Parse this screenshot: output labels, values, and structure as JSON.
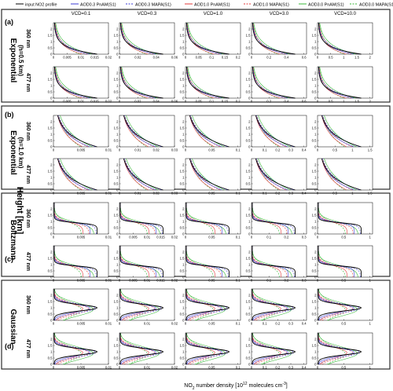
{
  "legend": [
    {
      "label": "input NO2 profile",
      "color": "#000000",
      "dash": ""
    },
    {
      "label": "AOD0.3 PnAM(S1)",
      "color": "#3b3bd6",
      "dash": ""
    },
    {
      "label": "AOD0.3 MAPA(S1)",
      "color": "#3b3bd6",
      "dash": "2,1.5"
    },
    {
      "label": "AOD1.0 PnAM(S1)",
      "color": "#e23a3a",
      "dash": ""
    },
    {
      "label": "AOD1.0 MAPA(S1)",
      "color": "#e23a3a",
      "dash": "2,1.5"
    },
    {
      "label": "AOD3.0 PnAM(S1)",
      "color": "#39b839",
      "dash": ""
    },
    {
      "label": "AOD3.0 MAPA(S1)",
      "color": "#39b839",
      "dash": "2,1.5"
    }
  ],
  "columns": [
    "VCD=0.1",
    "VCD=0.3",
    "VCD=1.0",
    "VCD=3.0",
    "VCD=10.0"
  ],
  "panels": [
    {
      "letter": "(a)",
      "name": "Exponential",
      "sub": "(h=0.5 km)",
      "box_color": "#2b2b2b"
    },
    {
      "letter": "(b)",
      "name": "Exponential",
      "sub": "(h=1.0 km)",
      "box_color": "#2b2b2b"
    },
    {
      "letter": "(c)",
      "name": "Boltzmann",
      "sub": "",
      "box_color": "#2b2b2b"
    },
    {
      "letter": "(d)",
      "name": "Gaussian",
      "sub": "",
      "box_color": "#2b2b2b"
    }
  ],
  "wavelengths": [
    "360 nm",
    "477 nm"
  ],
  "ylabel": "Height [km]",
  "xlabel": "NO2 number density [10^12 molecules cm^-3]",
  "chart_data": {
    "type": "line",
    "rows": 8,
    "cols": 5,
    "ylim": [
      0,
      2.5
    ],
    "yticks": [
      0,
      0.5,
      1,
      1.5,
      2
    ],
    "series_order": [
      "input NO2 profile",
      "AOD0.3 PnAM(S1)",
      "AOD0.3 MAPA(S1)",
      "AOD1.0 PnAM(S1)",
      "AOD1.0 MAPA(S1)",
      "AOD3.0 PnAM(S1)",
      "AOD3.0 MAPA(S1)"
    ],
    "xticks": [
      [
        [
          0,
          0.005,
          0.01,
          0.015,
          0.02
        ],
        [
          0,
          0.02,
          0.04,
          0.06
        ],
        [
          0,
          0.05,
          0.1,
          0.15,
          0.2
        ],
        [
          0,
          0.2,
          0.4,
          0.6
        ],
        [
          0,
          0.5,
          1,
          1.5,
          2
        ]
      ],
      [
        [
          0,
          0.005,
          0.01,
          0.015,
          0.02
        ],
        [
          0,
          0.02,
          0.04,
          0.06
        ],
        [
          0,
          0.05,
          0.1,
          0.15,
          0.2
        ],
        [
          0,
          0.2,
          0.4,
          0.6
        ],
        [
          0,
          0.5,
          1,
          1.5,
          2
        ]
      ],
      [
        [
          0,
          0.005,
          0.01
        ],
        [
          0,
          0.01,
          0.02,
          0.03
        ],
        [
          0,
          0.05,
          0.1
        ],
        [
          0,
          0.1,
          0.2,
          0.3,
          0.4
        ],
        [
          0,
          0.5,
          1,
          1.5
        ]
      ],
      [
        [
          0,
          0.005,
          0.01
        ],
        [
          0,
          0.01,
          0.02,
          0.03
        ],
        [
          0,
          0.05,
          0.1
        ],
        [
          0,
          0.1,
          0.2,
          0.3,
          0.4
        ],
        [
          0,
          0.5,
          1,
          1.5
        ]
      ],
      [
        [
          0,
          0.005,
          0.01
        ],
        [
          0,
          0.005,
          0.01,
          0.015,
          0.02
        ],
        [
          0,
          0.05,
          0.1
        ],
        [
          0,
          0.1,
          0.2,
          0.3
        ],
        [
          0,
          0.5,
          1
        ]
      ],
      [
        [
          0,
          0.005,
          0.01
        ],
        [
          0,
          0.005,
          0.01,
          0.015,
          0.02
        ],
        [
          0,
          0.05,
          0.1
        ],
        [
          0,
          0.1,
          0.2,
          0.3
        ],
        [
          0,
          0.5,
          1
        ]
      ],
      [
        [
          0,
          0.005,
          0.01
        ],
        [
          0,
          0.01,
          0.02
        ],
        [
          0,
          0.05,
          0.1
        ],
        [
          0,
          0.1,
          0.2,
          0.3,
          0.4
        ],
        [
          0,
          0.5,
          1
        ]
      ],
      [
        [
          0,
          0.005,
          0.01
        ],
        [
          0,
          0.01,
          0.02
        ],
        [
          0,
          0.05,
          0.1
        ],
        [
          0,
          0.1,
          0.2,
          0.3,
          0.4
        ],
        [
          0,
          0.5,
          1
        ]
      ]
    ],
    "profile_shapes": [
      "exp05",
      "exp05",
      "exp10",
      "exp10",
      "boltz",
      "boltz",
      "gauss",
      "gauss"
    ]
  }
}
